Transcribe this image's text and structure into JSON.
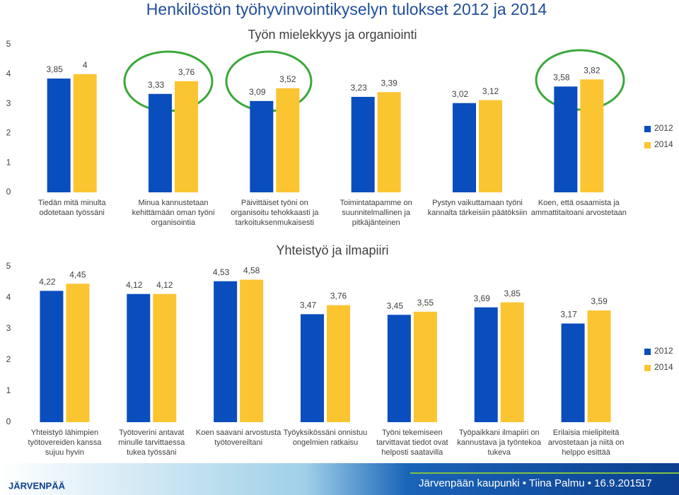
{
  "header": {
    "title": "Henkilöstön työhyvinvointikyselyn tulokset 2012 ja 2014"
  },
  "chart_data": [
    {
      "type": "bar",
      "title": "Työn mielekkyys ja organiointi",
      "categories": [
        "Tiedän mitä minulta odotetaan työssäni",
        "Minua kannustetaan kehittämään oman työni organisointia",
        "Päivittäiset työni on organisoitu tehokkaasti ja tarkoituksenmukaisesti",
        "Toimintatapamme on suunnitelmallinen ja pitkäjänteinen",
        "Pystyn vaikuttamaan työni kannalta tärkeisiin päätöksiin",
        "Koen, että osaamista ja ammattitaitoani arvostetaan"
      ],
      "series": [
        {
          "name": "2012",
          "color": "#0a4dbd",
          "values": [
            3.85,
            3.33,
            3.09,
            3.23,
            3.02,
            3.58
          ],
          "value_labels": [
            "3,85",
            "3,33",
            "3,09",
            "3,23",
            "3,02",
            "3,58"
          ]
        },
        {
          "name": "2014",
          "color": "#fbc531",
          "values": [
            4,
            3.76,
            3.52,
            3.39,
            3.12,
            3.82
          ],
          "value_labels": [
            "4",
            "3,76",
            "3,52",
            "3,39",
            "3,12",
            "3,82"
          ]
        }
      ],
      "ylim": [
        0,
        5
      ],
      "yticks": [
        0,
        1,
        2,
        3,
        4,
        5
      ],
      "legend": "right"
    },
    {
      "type": "bar",
      "title": "Yhteistyö ja ilmapiiri",
      "categories": [
        "Yhteistyö lähimpien työtovereiden kanssa sujuu hyvin",
        "Työtoverini antavat minulle tarvittaessa tukea työssäni",
        "Koen saavani arvostusta työtovereiltani",
        "Työyksikössäni onnistuu ongelmien ratkaisu",
        "Työni tekemiseen tarvittavat tiedot ovat helposti saatavilla",
        "Työpaikkani ilmapiiri on kannustava ja työntekoa tukeva",
        "Erilaisia mielipiteitä arvostetaan ja niitä on helppo esittää"
      ],
      "series": [
        {
          "name": "2012",
          "color": "#0a4dbd",
          "values": [
            4.22,
            4.12,
            4.53,
            3.47,
            3.45,
            3.69,
            3.17
          ],
          "value_labels": [
            "4,22",
            "4,12",
            "4,53",
            "3,47",
            "3,45",
            "3,69",
            "3,17"
          ]
        },
        {
          "name": "2014",
          "color": "#fbc531",
          "values": [
            4.45,
            4.12,
            4.58,
            3.76,
            3.55,
            3.85,
            3.59
          ],
          "value_labels": [
            "4,45",
            "4,12",
            "4,58",
            "3,76",
            "3,55",
            "3,85",
            "3,59"
          ]
        }
      ],
      "ylim": [
        0,
        5
      ],
      "yticks": [
        0,
        1,
        2,
        3,
        4,
        5
      ],
      "legend": "right"
    }
  ],
  "footer": {
    "logo": "JÄRVENPÄÄ",
    "text": "Järvenpään kaupunki • Tiina Palmu • 16.9.2015",
    "page": "17"
  }
}
